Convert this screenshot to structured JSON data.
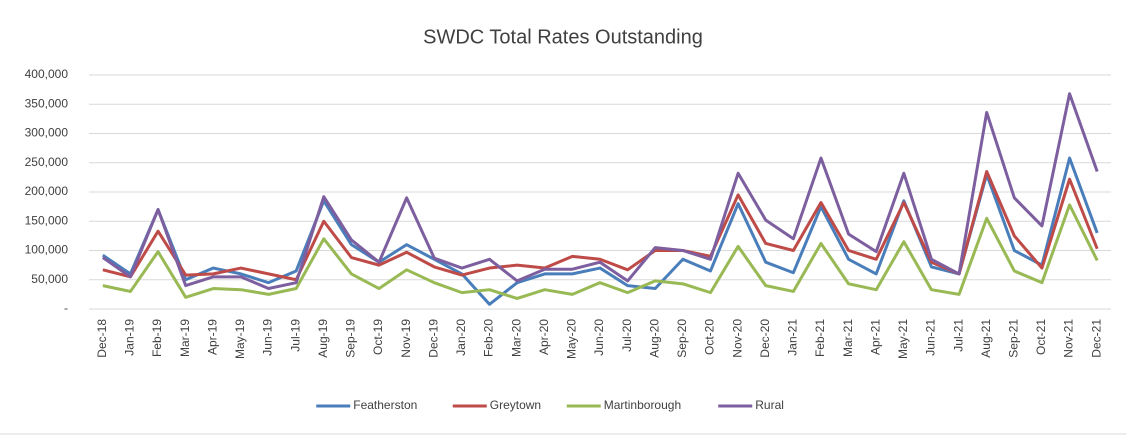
{
  "chart_data": {
    "type": "line",
    "title": "SWDC Total Rates Outstanding",
    "categories": [
      "Dec-18",
      "Jan-19",
      "Feb-19",
      "Mar-19",
      "Apr-19",
      "May-19",
      "Jun-19",
      "Jul-19",
      "Aug-19",
      "Sep-19",
      "Oct-19",
      "Nov-19",
      "Dec-19",
      "Jan-20",
      "Feb-20",
      "Mar-20",
      "Apr-20",
      "May-20",
      "Jun-20",
      "Jul-20",
      "Aug-20",
      "Sep-20",
      "Oct-20",
      "Nov-20",
      "Dec-20",
      "Jan-21",
      "Feb-21",
      "Mar-21",
      "Apr-21",
      "May-21",
      "Jun-21",
      "Jul-21",
      "Aug-21",
      "Sep-21",
      "Oct-21",
      "Nov-21",
      "Dec-21"
    ],
    "series": [
      {
        "name": "Featherston",
        "color": "#4a7ebb",
        "values": [
          92000,
          60000,
          170000,
          50000,
          70000,
          60000,
          45000,
          65000,
          185000,
          110000,
          80000,
          110000,
          85000,
          60000,
          8000,
          45000,
          60000,
          60000,
          70000,
          40000,
          35000,
          85000,
          65000,
          180000,
          80000,
          62000,
          175000,
          85000,
          60000,
          185000,
          72000,
          60000,
          230000,
          100000,
          75000,
          258000,
          130000
        ]
      },
      {
        "name": "Greytown",
        "color": "#be4b48",
        "values": [
          67000,
          55000,
          133000,
          58000,
          60000,
          70000,
          60000,
          50000,
          150000,
          88000,
          75000,
          97000,
          72000,
          58000,
          70000,
          75000,
          70000,
          90000,
          85000,
          67000,
          100000,
          100000,
          90000,
          195000,
          112000,
          100000,
          182000,
          100000,
          85000,
          182000,
          80000,
          60000,
          235000,
          125000,
          70000,
          222000,
          103000
        ]
      },
      {
        "name": "Martinborough",
        "color": "#98b954",
        "values": [
          40000,
          30000,
          98000,
          20000,
          35000,
          33000,
          25000,
          35000,
          120000,
          60000,
          35000,
          67000,
          45000,
          28000,
          33000,
          18000,
          33000,
          25000,
          45000,
          28000,
          48000,
          43000,
          28000,
          107000,
          40000,
          30000,
          112000,
          43000,
          33000,
          115000,
          33000,
          25000,
          155000,
          65000,
          45000,
          178000,
          83000
        ]
      },
      {
        "name": "Rural",
        "color": "#7d5fa0",
        "values": [
          88000,
          55000,
          170000,
          40000,
          55000,
          55000,
          35000,
          45000,
          192000,
          118000,
          80000,
          190000,
          87000,
          70000,
          85000,
          48000,
          68000,
          68000,
          80000,
          48000,
          105000,
          100000,
          85000,
          232000,
          152000,
          120000,
          258000,
          128000,
          98000,
          232000,
          85000,
          60000,
          336000,
          190000,
          142000,
          368000,
          235000
        ]
      }
    ],
    "ylim": [
      0,
      400000
    ],
    "yticks": [
      {
        "value": 0,
        "label": "-"
      },
      {
        "value": 50000,
        "label": "50,000"
      },
      {
        "value": 100000,
        "label": "100,000"
      },
      {
        "value": 150000,
        "label": "150,000"
      },
      {
        "value": 200000,
        "label": "200,000"
      },
      {
        "value": 250000,
        "label": "250,000"
      },
      {
        "value": 300000,
        "label": "300,000"
      },
      {
        "value": 350000,
        "label": "350,000"
      },
      {
        "value": 400000,
        "label": "400,000"
      }
    ],
    "grid": true,
    "legend": "bottom"
  }
}
